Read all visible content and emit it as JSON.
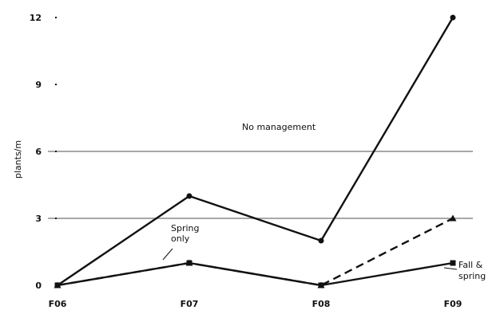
{
  "chart_data": {
    "type": "line",
    "ylabel": "plants/m",
    "x": [
      "F06",
      "F07",
      "F08",
      "F09"
    ],
    "ylim": [
      0,
      12
    ],
    "yticks": [
      0,
      3,
      6,
      9,
      12
    ],
    "gridlines": [
      3,
      6
    ],
    "grid": false,
    "legend": "none",
    "series": [
      {
        "name": "No management",
        "values": [
          0,
          4,
          2,
          12
        ],
        "style": "solid",
        "marker": "circle"
      },
      {
        "name": "Spring only",
        "values": [
          0,
          1,
          0,
          3
        ],
        "style": "dashed",
        "marker": "triangle"
      },
      {
        "name": "Fall & spring",
        "values": [
          0,
          1,
          0,
          1
        ],
        "style": "solid",
        "marker": "square"
      }
    ],
    "annotations": [
      {
        "text": "No management",
        "series": 0
      },
      {
        "text": "Spring only",
        "series": 1
      },
      {
        "text": "Fall & spring",
        "series": 2
      }
    ],
    "colors": {
      "line": "#111111",
      "gridline": "#8a8a8a"
    }
  }
}
